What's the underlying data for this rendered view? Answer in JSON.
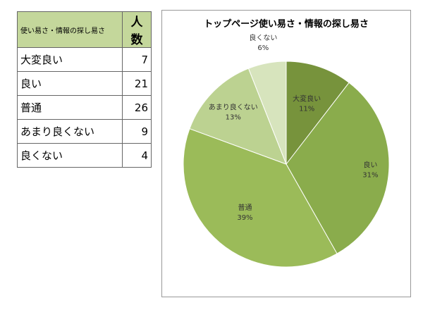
{
  "table": {
    "header": [
      "使い易さ・情報の探し易さ",
      "人数"
    ],
    "rows": [
      [
        "大変良い",
        "7"
      ],
      [
        "良い",
        "21"
      ],
      [
        "普通",
        "26"
      ],
      [
        "あまり良くない",
        "9"
      ],
      [
        "良くない",
        "4"
      ]
    ]
  },
  "chart_data": {
    "type": "pie",
    "title": "トップページ使い易さ・情報の探し易さ",
    "categories": [
      "大変良い",
      "良い",
      "普通",
      "あまり良くない",
      "良くない"
    ],
    "values": [
      7,
      21,
      26,
      9,
      4
    ],
    "labels": [
      "11%",
      "31%",
      "39%",
      "13%",
      "6%"
    ],
    "colors": [
      "#77933c",
      "#8aac4c",
      "#9bbb59",
      "#bcd291",
      "#d7e4bd"
    ]
  }
}
